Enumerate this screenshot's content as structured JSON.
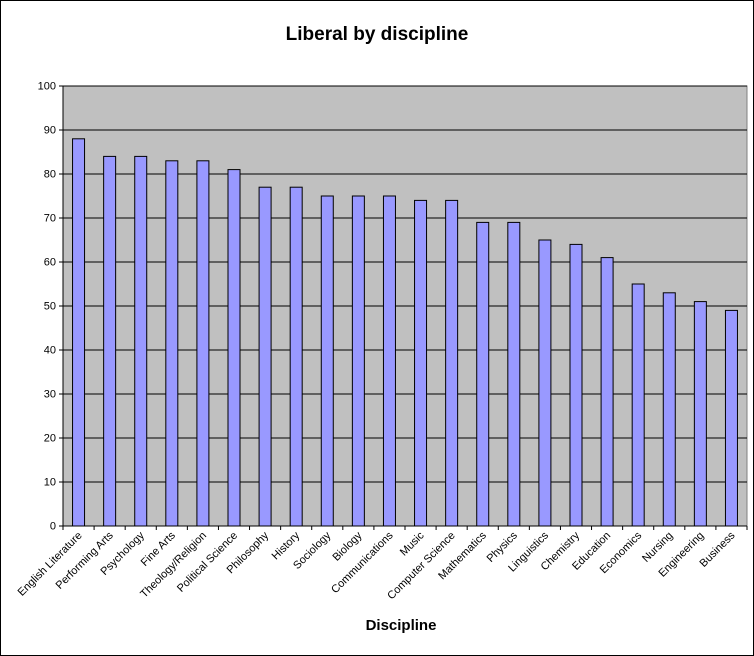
{
  "chart_data": {
    "type": "bar",
    "title": "Liberal by discipline",
    "xlabel": "Discipline",
    "ylabel": "",
    "ylim": [
      0,
      100
    ],
    "yticks": [
      0,
      10,
      20,
      30,
      40,
      50,
      60,
      70,
      80,
      90,
      100
    ],
    "grid": true,
    "legend": "none",
    "categories": [
      "English Literature",
      "Performing Arts",
      "Psychology",
      "Fine Arts",
      "Theology/Religion",
      "Political Science",
      "Philosophy",
      "History",
      "Sociology",
      "Biology",
      "Communications",
      "Music",
      "Computer Science",
      "Mathematics",
      "Physics",
      "Linguistics",
      "Chemistry",
      "Education",
      "Economics",
      "Nursing",
      "Engineering",
      "Business"
    ],
    "values": [
      88,
      84,
      84,
      83,
      83,
      81,
      77,
      77,
      75,
      75,
      75,
      74,
      74,
      69,
      69,
      65,
      64,
      61,
      55,
      53,
      51,
      49
    ],
    "colors": {
      "plot_background": "#c0c0c0",
      "bar_fill": "#9999ff",
      "bar_stroke": "#000000",
      "gridline": "#000000"
    }
  }
}
